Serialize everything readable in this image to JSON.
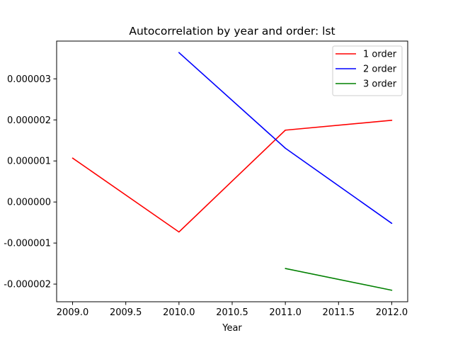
{
  "chart_data": {
    "type": "line",
    "title": "Autocorrelation by year and order: lst",
    "xlabel": "Year",
    "ylabel": "",
    "xlim": [
      2008.85,
      2012.15
    ],
    "ylim": [
      -2.43e-06,
      3.92e-06
    ],
    "xticks": [
      2009.0,
      2009.5,
      2010.0,
      2010.5,
      2011.0,
      2011.5,
      2012.0
    ],
    "xtick_labels": [
      "2009.0",
      "2009.5",
      "2010.0",
      "2010.5",
      "2011.0",
      "2011.5",
      "2012.0"
    ],
    "yticks": [
      -2e-06,
      -1e-06,
      0.0,
      1e-06,
      2e-06,
      3e-06
    ],
    "ytick_labels": [
      "-0.000002",
      "-0.000001",
      "0.000000",
      "0.000001",
      "0.000002",
      "0.000003"
    ],
    "grid": false,
    "legend_position": "upper right",
    "series": [
      {
        "name": "1 order",
        "color": "#ff0000",
        "x": [
          2009,
          2010,
          2011,
          2012
        ],
        "y": [
          1.07e-06,
          -7.3e-07,
          1.75e-06,
          1.99e-06
        ]
      },
      {
        "name": "2 order",
        "color": "#0000ff",
        "x": [
          2010,
          2011,
          2012
        ],
        "y": [
          3.64e-06,
          1.31e-06,
          -5.2e-07
        ]
      },
      {
        "name": "3 order",
        "color": "#008000",
        "x": [
          2011,
          2012
        ],
        "y": [
          -1.62e-06,
          -2.15e-06
        ]
      }
    ]
  }
}
